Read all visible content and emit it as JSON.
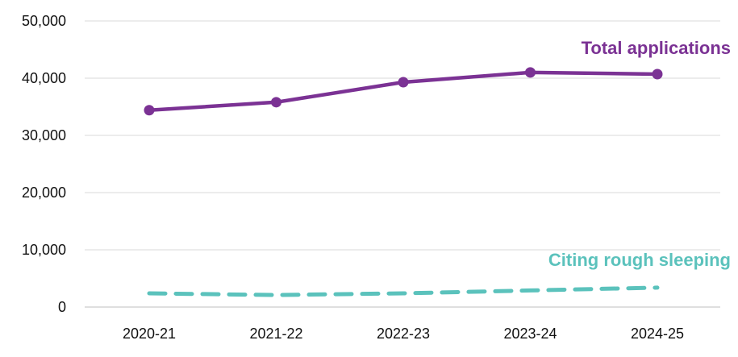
{
  "chart_data": {
    "type": "line",
    "categories": [
      "2020-21",
      "2021-22",
      "2022-23",
      "2023-24",
      "2024-25"
    ],
    "series": [
      {
        "name": "Total applications",
        "values": [
          34400,
          35800,
          39300,
          41000,
          40700
        ],
        "color": "#7B3294",
        "style": "solid",
        "markers": true
      },
      {
        "name": "Citing rough sleeping",
        "values": [
          2400,
          2100,
          2400,
          2900,
          3400
        ],
        "color": "#5BC2BC",
        "style": "dashed",
        "markers": false
      }
    ],
    "yticks": [
      "0",
      "10,000",
      "20,000",
      "30,000",
      "40,000",
      "50,000"
    ],
    "ylim": [
      0,
      50000
    ],
    "grid": true,
    "legend": "inline labels"
  }
}
